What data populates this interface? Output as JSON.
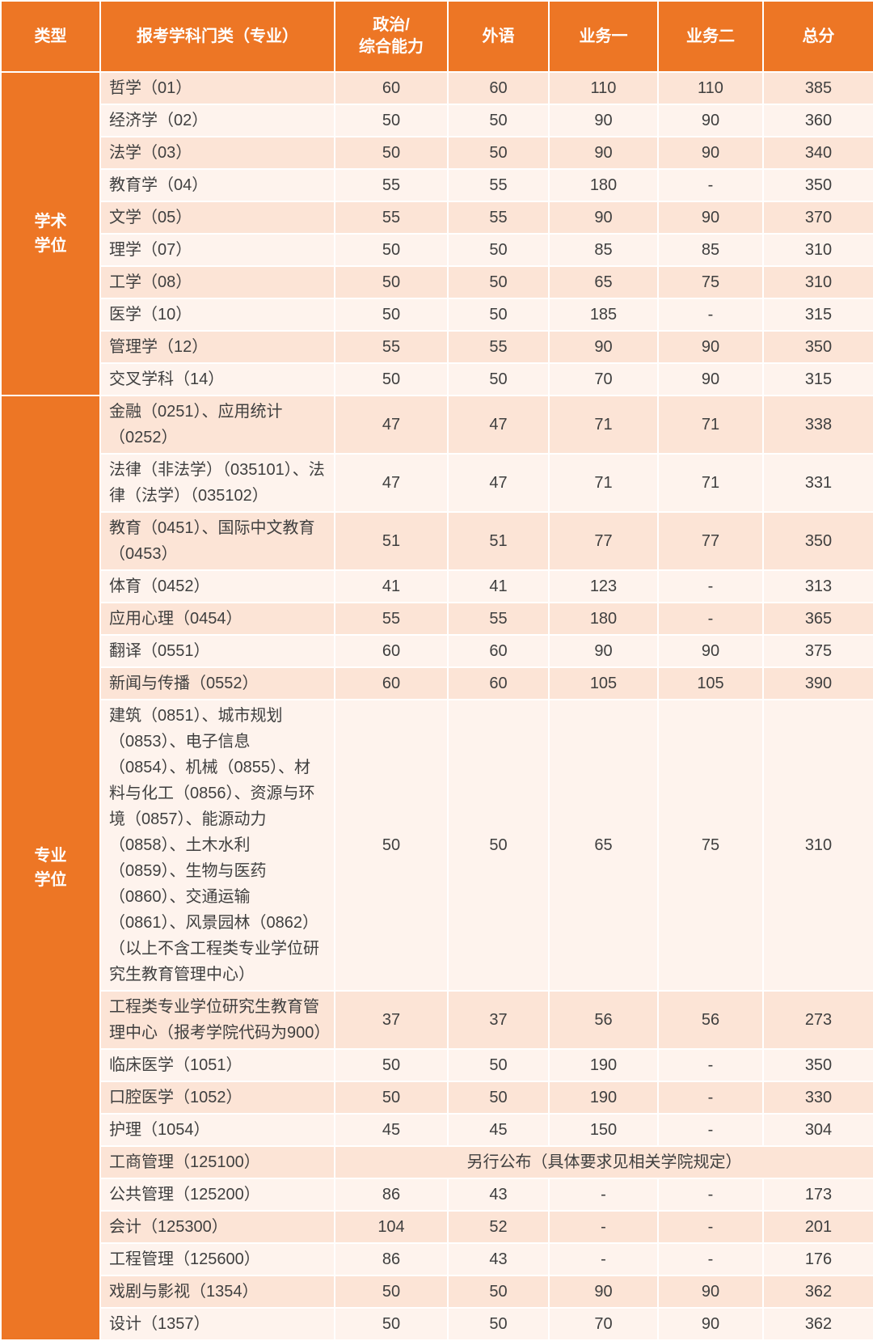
{
  "colors": {
    "header_bg": "#ED7625",
    "header_text": "#FFFFFF",
    "row_dark": "#FCE4D6",
    "row_light": "#FEF3ED",
    "body_text": "#3F3F3F",
    "border": "#FFFFFF"
  },
  "chart_data": {
    "type": "table",
    "title": "",
    "columns": [
      "类型",
      "报考学科门类（专业）",
      "政治/\n综合能力",
      "外语",
      "业务一",
      "业务二",
      "总分"
    ],
    "groups": [
      {
        "label": "学术学位",
        "label_display": "学术\n学位",
        "rows": [
          {
            "major": "哲学（01）",
            "scores": [
              "60",
              "60",
              "110",
              "110",
              "385"
            ]
          },
          {
            "major": "经济学（02）",
            "scores": [
              "50",
              "50",
              "90",
              "90",
              "360"
            ]
          },
          {
            "major": "法学（03）",
            "scores": [
              "50",
              "50",
              "90",
              "90",
              "340"
            ]
          },
          {
            "major": "教育学（04）",
            "scores": [
              "55",
              "55",
              "180",
              "-",
              "350"
            ]
          },
          {
            "major": "文学（05）",
            "scores": [
              "55",
              "55",
              "90",
              "90",
              "370"
            ]
          },
          {
            "major": "理学（07）",
            "scores": [
              "50",
              "50",
              "85",
              "85",
              "310"
            ]
          },
          {
            "major": "工学（08）",
            "scores": [
              "50",
              "50",
              "65",
              "75",
              "310"
            ]
          },
          {
            "major": "医学（10）",
            "scores": [
              "50",
              "50",
              "185",
              "-",
              "315"
            ]
          },
          {
            "major": "管理学（12）",
            "scores": [
              "55",
              "55",
              "90",
              "90",
              "350"
            ]
          },
          {
            "major": "交叉学科（14）",
            "scores": [
              "50",
              "50",
              "70",
              "90",
              "315"
            ]
          }
        ]
      },
      {
        "label": "专业学位",
        "label_display": "专业\n学位",
        "rows": [
          {
            "major": "金融（0251）、应用统计（0252）",
            "scores": [
              "47",
              "47",
              "71",
              "71",
              "338"
            ]
          },
          {
            "major": "法律（非法学）（035101）、法律（法学）（035102）",
            "scores": [
              "47",
              "47",
              "71",
              "71",
              "331"
            ]
          },
          {
            "major": "教育（0451）、国际中文教育（0453）",
            "scores": [
              "51",
              "51",
              "77",
              "77",
              "350"
            ]
          },
          {
            "major": "体育（0452）",
            "scores": [
              "41",
              "41",
              "123",
              "-",
              "313"
            ]
          },
          {
            "major": "应用心理（0454）",
            "scores": [
              "55",
              "55",
              "180",
              "-",
              "365"
            ]
          },
          {
            "major": "翻译（0551）",
            "scores": [
              "60",
              "60",
              "90",
              "90",
              "375"
            ]
          },
          {
            "major": "新闻与传播（0552）",
            "scores": [
              "60",
              "60",
              "105",
              "105",
              "390"
            ]
          },
          {
            "major": "建筑（0851）、城市规划（0853）、电子信息（0854）、机械（0855）、材料与化工（0856）、资源与环境（0857）、能源动力（0858）、土木水利（0859）、生物与医药（0860）、交通运输（0861）、风景园林（0862）（以上不含工程类专业学位研究生教育管理中心）",
            "scores": [
              "50",
              "50",
              "65",
              "75",
              "310"
            ]
          },
          {
            "major": "工程类专业学位研究生教育管理中心（报考学院代码为900）",
            "scores": [
              "37",
              "37",
              "56",
              "56",
              "273"
            ]
          },
          {
            "major": "临床医学（1051）",
            "scores": [
              "50",
              "50",
              "190",
              "-",
              "350"
            ]
          },
          {
            "major": "口腔医学（1052）",
            "scores": [
              "50",
              "50",
              "190",
              "-",
              "330"
            ]
          },
          {
            "major": "护理（1054）",
            "scores": [
              "45",
              "45",
              "150",
              "-",
              "304"
            ]
          },
          {
            "major": "工商管理（125100）",
            "note": "另行公布（具体要求见相关学院规定）"
          },
          {
            "major": "公共管理（125200）",
            "scores": [
              "86",
              "43",
              "-",
              "-",
              "173"
            ]
          },
          {
            "major": "会计（125300）",
            "scores": [
              "104",
              "52",
              "-",
              "-",
              "201"
            ]
          },
          {
            "major": "工程管理（125600）",
            "scores": [
              "86",
              "43",
              "-",
              "-",
              "176"
            ]
          },
          {
            "major": "戏剧与影视（1354）",
            "scores": [
              "50",
              "50",
              "90",
              "90",
              "362"
            ]
          },
          {
            "major": "设计（1357）",
            "scores": [
              "50",
              "50",
              "70",
              "90",
              "362"
            ]
          }
        ]
      }
    ]
  }
}
